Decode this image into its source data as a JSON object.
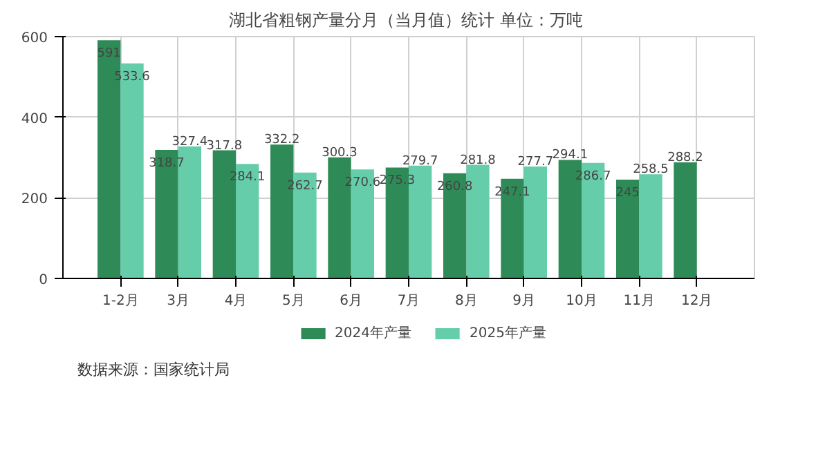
{
  "chart_data": {
    "type": "bar",
    "title": "湖北省粗钢产量分月（当月值）统计  单位：万吨",
    "categories": [
      "1-2月",
      "3月",
      "4月",
      "5月",
      "6月",
      "7月",
      "8月",
      "9月",
      "10月",
      "11月",
      "12月"
    ],
    "series": [
      {
        "name": "2024年产量",
        "color": "#2e8b57",
        "values": [
          591,
          318.7,
          317.8,
          332.2,
          300.3,
          275.3,
          260.8,
          247.1,
          294.1,
          245,
          288.2
        ]
      },
      {
        "name": "2025年产量",
        "color": "#66cdaa",
        "values": [
          533.6,
          327.4,
          284.1,
          262.7,
          270.6,
          279.7,
          281.8,
          277.7,
          286.7,
          258.5,
          null
        ]
      }
    ],
    "ylim": [
      0,
      600
    ],
    "yticks": [
      0,
      200,
      400,
      600
    ],
    "grid": true,
    "legend": "bottom",
    "data_labels": true,
    "annotations": [
      "数据来源：国家统计局"
    ]
  }
}
